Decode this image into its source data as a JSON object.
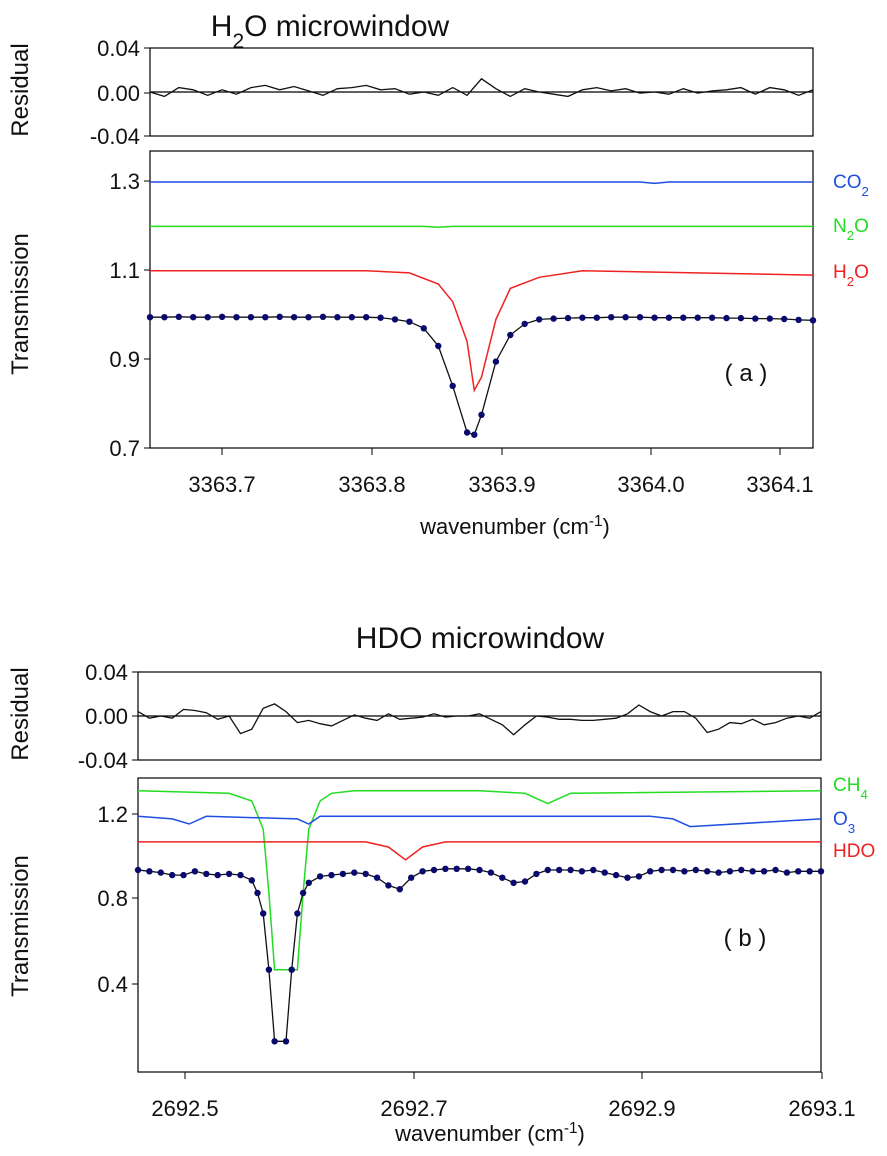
{
  "chart_data": [
    {
      "type": "line",
      "title_main": "H",
      "title_sub": "2",
      "title_rest": "O microwindow",
      "panel_label": "( a )",
      "xlabel": "wavenumber (cm",
      "xlabel_sup": "-1",
      "xlabel_end": ")",
      "xlim": [
        3363.65,
        3364.11
      ],
      "x_ticks": [
        "3363.7",
        "3363.8",
        "3363.9",
        "3364.0",
        "3364.1"
      ],
      "residual": {
        "ylabel": "Residual",
        "ylim": [
          -0.04,
          0.04
        ],
        "y_ticks": [
          "0.04",
          "0.00",
          "-0.04"
        ],
        "x": [
          3363.65,
          3363.66,
          3363.67,
          3363.68,
          3363.69,
          3363.7,
          3363.71,
          3363.72,
          3363.73,
          3363.74,
          3363.75,
          3363.76,
          3363.77,
          3363.78,
          3363.79,
          3363.8,
          3363.81,
          3363.82,
          3363.83,
          3363.84,
          3363.85,
          3363.86,
          3363.87,
          3363.88,
          3363.89,
          3363.9,
          3363.91,
          3363.92,
          3363.93,
          3363.94,
          3363.95,
          3363.96,
          3363.97,
          3363.98,
          3363.99,
          3364.0,
          3364.01,
          3364.02,
          3364.03,
          3364.04,
          3364.05,
          3364.06,
          3364.07,
          3364.08,
          3364.09,
          3364.1,
          3364.11
        ],
        "y": [
          0.0,
          -0.004,
          0.004,
          0.002,
          -0.003,
          0.002,
          -0.002,
          0.004,
          0.006,
          0.002,
          0.005,
          0.001,
          -0.003,
          0.003,
          0.004,
          0.006,
          0.002,
          0.003,
          -0.002,
          0.0,
          -0.003,
          0.004,
          -0.003,
          0.012,
          0.003,
          -0.004,
          0.003,
          0.0,
          -0.002,
          -0.004,
          0.002,
          0.004,
          0.001,
          0.003,
          -0.001,
          0.0,
          -0.002,
          0.003,
          -0.001,
          0.001,
          0.002,
          0.004,
          -0.002,
          0.004,
          0.002,
          -0.003,
          0.002
        ]
      },
      "transmission": {
        "ylabel": "Transmission",
        "ylim": [
          0.7,
          1.37
        ],
        "y_ticks": [
          "1.3",
          "1.1",
          "0.9",
          "0.7"
        ],
        "series": [
          {
            "name": "CO",
            "name_sub": "2",
            "color": "#1f4fe0",
            "x": [
              3363.65,
              3363.99,
              3364.0,
              3364.01,
              3364.11
            ],
            "y": [
              1.3,
              1.3,
              1.297,
              1.3,
              1.3
            ]
          },
          {
            "name": "N",
            "name_sub": "2",
            "name_rest": "O",
            "color": "#22dd22",
            "x": [
              3363.65,
              3363.84,
              3363.85,
              3363.86,
              3364.11
            ],
            "y": [
              1.2,
              1.2,
              1.198,
              1.2,
              1.2
            ]
          },
          {
            "name": "H",
            "name_sub": "2",
            "name_rest": "O",
            "color": "#ee2222",
            "x": [
              3363.65,
              3363.8,
              3363.83,
              3363.85,
              3363.86,
              3363.87,
              3363.875,
              3363.88,
              3363.89,
              3363.9,
              3363.92,
              3363.95,
              3364.11
            ],
            "y": [
              1.1,
              1.1,
              1.095,
              1.07,
              1.03,
              0.94,
              0.83,
              0.86,
              0.99,
              1.06,
              1.085,
              1.1,
              1.09
            ]
          },
          {
            "name": "measured",
            "color": "#0a0a6e",
            "markers": true,
            "x": [
              3363.65,
              3363.66,
              3363.67,
              3363.68,
              3363.69,
              3363.7,
              3363.71,
              3363.72,
              3363.73,
              3363.74,
              3363.75,
              3363.76,
              3363.77,
              3363.78,
              3363.79,
              3363.8,
              3363.81,
              3363.82,
              3363.83,
              3363.84,
              3363.85,
              3363.86,
              3363.87,
              3363.875,
              3363.88,
              3363.89,
              3363.9,
              3363.91,
              3363.92,
              3363.93,
              3363.94,
              3363.95,
              3363.96,
              3363.97,
              3363.98,
              3363.99,
              3364.0,
              3364.01,
              3364.02,
              3364.03,
              3364.04,
              3364.05,
              3364.06,
              3364.07,
              3364.08,
              3364.09,
              3364.1,
              3364.11
            ],
            "y": [
              0.995,
              0.995,
              0.996,
              0.995,
              0.995,
              0.996,
              0.995,
              0.995,
              0.995,
              0.996,
              0.995,
              0.995,
              0.996,
              0.995,
              0.995,
              0.995,
              0.994,
              0.99,
              0.985,
              0.97,
              0.93,
              0.84,
              0.735,
              0.73,
              0.775,
              0.895,
              0.955,
              0.98,
              0.99,
              0.992,
              0.993,
              0.994,
              0.994,
              0.995,
              0.995,
              0.995,
              0.994,
              0.994,
              0.994,
              0.994,
              0.994,
              0.993,
              0.993,
              0.992,
              0.992,
              0.991,
              0.989,
              0.988
            ]
          }
        ]
      }
    },
    {
      "type": "line",
      "title_main": "HDO microwindow",
      "panel_label": "( b )",
      "xlabel": "wavenumber (cm",
      "xlabel_sup": "-1",
      "xlabel_end": ")",
      "xlim": [
        2692.5,
        2693.1
      ],
      "x_ticks": [
        "2692.5",
        "2692.7",
        "2692.9",
        "2693.1"
      ],
      "residual": {
        "ylabel": "Residual",
        "ylim": [
          -0.04,
          0.04
        ],
        "y_ticks": [
          "0.04",
          "0.00",
          "-0.04"
        ],
        "x": [
          2692.5,
          2692.51,
          2692.52,
          2692.53,
          2692.54,
          2692.55,
          2692.56,
          2692.57,
          2692.58,
          2692.59,
          2692.6,
          2692.61,
          2692.62,
          2692.63,
          2692.64,
          2692.65,
          2692.66,
          2692.67,
          2692.68,
          2692.69,
          2692.7,
          2692.71,
          2692.72,
          2692.73,
          2692.74,
          2692.75,
          2692.76,
          2692.77,
          2692.78,
          2692.79,
          2692.8,
          2692.81,
          2692.82,
          2692.83,
          2692.84,
          2692.85,
          2692.86,
          2692.87,
          2692.88,
          2692.89,
          2692.9,
          2692.91,
          2692.92,
          2692.93,
          2692.94,
          2692.95,
          2692.96,
          2692.97,
          2692.98,
          2692.99,
          2693.0,
          2693.01,
          2693.02,
          2693.03,
          2693.04,
          2693.05,
          2693.06,
          2693.07,
          2693.08,
          2693.09,
          2693.1
        ],
        "y": [
          0.004,
          -0.002,
          0.0,
          -0.002,
          0.006,
          0.005,
          0.003,
          -0.003,
          0.0,
          -0.016,
          -0.012,
          0.007,
          0.011,
          0.004,
          -0.006,
          -0.004,
          -0.007,
          -0.009,
          -0.004,
          0.001,
          -0.002,
          -0.004,
          0.002,
          -0.003,
          -0.002,
          -0.001,
          0.002,
          -0.001,
          0.0,
          0.0,
          0.002,
          -0.003,
          -0.008,
          -0.017,
          -0.008,
          0.0,
          -0.001,
          -0.003,
          -0.003,
          -0.004,
          -0.004,
          -0.003,
          -0.002,
          0.002,
          0.01,
          0.004,
          0.0,
          0.004,
          0.004,
          -0.002,
          -0.015,
          -0.012,
          -0.006,
          -0.007,
          -0.003,
          -0.008,
          -0.006,
          -0.002,
          0.0,
          -0.002,
          0.004
        ]
      },
      "transmission": {
        "ylabel": "Transmission",
        "ylim": [
          0.2,
          1.35
        ],
        "y_ticks": [
          "1.2",
          "0.8",
          "0.4"
        ],
        "series": [
          {
            "name": "CH",
            "name_sub": "4",
            "color": "#22dd22",
            "x": [
              2692.5,
              2692.58,
              2692.6,
              2692.61,
              2692.615,
              2692.62,
              2692.63,
              2692.64,
              2692.645,
              2692.65,
              2692.66,
              2692.67,
              2692.69,
              2692.8,
              2692.84,
              2692.86,
              2692.88,
              2693.1
            ],
            "y": [
              1.3,
              1.29,
              1.26,
              1.15,
              0.9,
              0.6,
              0.6,
              0.6,
              0.9,
              1.15,
              1.26,
              1.29,
              1.3,
              1.3,
              1.29,
              1.25,
              1.29,
              1.3
            ]
          },
          {
            "name": "O",
            "name_sub": "3",
            "color": "#1f4fe0",
            "x": [
              2692.5,
              2692.53,
              2692.545,
              2692.56,
              2692.64,
              2692.65,
              2692.66,
              2692.95,
              2692.97,
              2692.985,
              2693.1
            ],
            "y": [
              1.2,
              1.19,
              1.17,
              1.2,
              1.19,
              1.17,
              1.2,
              1.2,
              1.19,
              1.16,
              1.19
            ]
          },
          {
            "name": "HDO",
            "color": "#ee2222",
            "x": [
              2692.5,
              2692.7,
              2692.72,
              2692.735,
              2692.75,
              2692.77,
              2693.1
            ],
            "y": [
              1.1,
              1.1,
              1.08,
              1.03,
              1.08,
              1.1,
              1.1
            ]
          },
          {
            "name": "measured",
            "color": "#0a0a6e",
            "markers": true,
            "x": [
              2692.5,
              2692.51,
              2692.52,
              2692.53,
              2692.54,
              2692.55,
              2692.56,
              2692.57,
              2692.58,
              2692.59,
              2692.6,
              2692.605,
              2692.61,
              2692.615,
              2692.62,
              2692.63,
              2692.635,
              2692.64,
              2692.645,
              2692.65,
              2692.66,
              2692.67,
              2692.68,
              2692.69,
              2692.7,
              2692.71,
              2692.72,
              2692.73,
              2692.74,
              2692.75,
              2692.76,
              2692.77,
              2692.78,
              2692.79,
              2692.8,
              2692.81,
              2692.82,
              2692.83,
              2692.84,
              2692.85,
              2692.86,
              2692.87,
              2692.88,
              2692.89,
              2692.9,
              2692.91,
              2692.92,
              2692.93,
              2692.94,
              2692.95,
              2692.96,
              2692.97,
              2692.98,
              2692.99,
              2693.0,
              2693.01,
              2693.02,
              2693.03,
              2693.04,
              2693.05,
              2693.06,
              2693.07,
              2693.08,
              2693.09,
              2693.1
            ],
            "y": [
              0.99,
              0.985,
              0.98,
              0.97,
              0.97,
              0.985,
              0.975,
              0.97,
              0.975,
              0.97,
              0.95,
              0.9,
              0.82,
              0.6,
              0.32,
              0.32,
              0.6,
              0.82,
              0.9,
              0.94,
              0.965,
              0.97,
              0.975,
              0.98,
              0.975,
              0.96,
              0.93,
              0.915,
              0.96,
              0.985,
              0.99,
              0.995,
              0.995,
              0.995,
              0.99,
              0.98,
              0.96,
              0.94,
              0.945,
              0.975,
              0.99,
              0.99,
              0.99,
              0.985,
              0.99,
              0.98,
              0.97,
              0.96,
              0.965,
              0.985,
              0.99,
              0.99,
              0.985,
              0.99,
              0.985,
              0.98,
              0.985,
              0.99,
              0.985,
              0.985,
              0.99,
              0.98,
              0.985,
              0.985,
              0.985
            ]
          }
        ]
      }
    }
  ]
}
